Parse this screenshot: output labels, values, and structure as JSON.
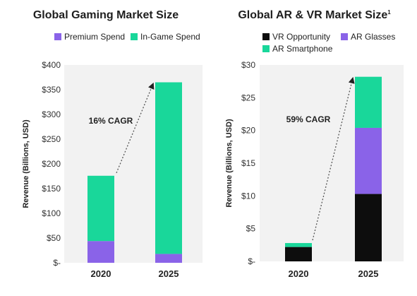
{
  "colors": {
    "premium": "#8a63e8",
    "ingame": "#19d79a",
    "vr": "#0d0d0d",
    "arglasses": "#8a63e8",
    "arsmartphone": "#19d79a",
    "plot_bg": "#f2f2f2",
    "arrow": "#555555"
  },
  "chart_data": [
    {
      "type": "bar",
      "stacked": true,
      "title": "Global Gaming Market Size",
      "title_superscript": "",
      "ylabel": "Revenue (Billions, USD)",
      "categories": [
        "2020",
        "2025"
      ],
      "ylim": [
        0,
        400
      ],
      "yticks": [
        0,
        50,
        100,
        150,
        200,
        250,
        300,
        350,
        400
      ],
      "ytick_labels": [
        "$-",
        "$50",
        "$100",
        "$150",
        "$200",
        "$250",
        "$300",
        "$350",
        "$400"
      ],
      "series": [
        {
          "name": "Premium Spend",
          "values": [
            44,
            18
          ]
        },
        {
          "name": "In-Game Spend",
          "values": [
            132,
            347
          ]
        }
      ],
      "annotation": "16% CAGR",
      "legend": "top"
    },
    {
      "type": "bar",
      "stacked": true,
      "title": "Global AR & VR Market Size",
      "title_superscript": "1",
      "ylabel": "Revenue (Billions, USD)",
      "categories": [
        "2020",
        "2025"
      ],
      "ylim": [
        0,
        30
      ],
      "yticks": [
        0,
        5,
        10,
        15,
        20,
        25,
        30
      ],
      "ytick_labels": [
        "$-",
        "$5",
        "$10",
        "$15",
        "$20",
        "$25",
        "$30"
      ],
      "series": [
        {
          "name": "VR Opportunity",
          "values": [
            2.2,
            10.3
          ]
        },
        {
          "name": "AR Glasses",
          "values": [
            0,
            10.1
          ]
        },
        {
          "name": "AR Smartphone",
          "values": [
            0.6,
            7.8
          ]
        }
      ],
      "annotation": "59% CAGR",
      "legend": "top"
    }
  ]
}
